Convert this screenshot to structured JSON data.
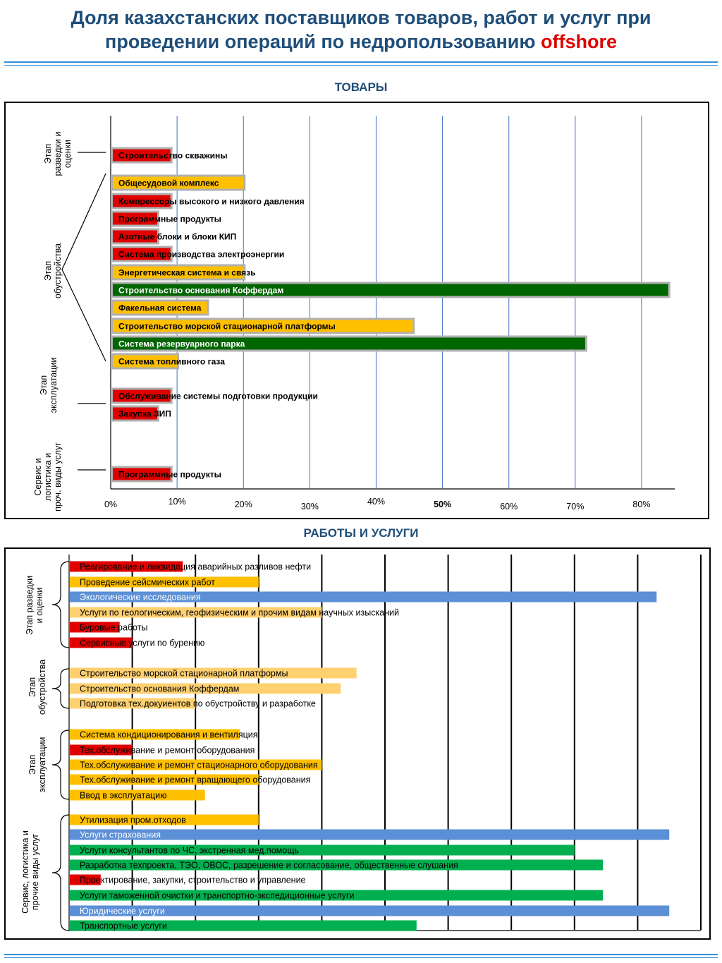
{
  "header": {
    "title_line1": "Доля казахстанских поставщиков товаров, работ и услуг при",
    "title_line2": "проведении операций по недропользованию",
    "title_accent": "offshore"
  },
  "colors": {
    "red": "#e00000",
    "orange": "#ffc000",
    "dark_green": "#006600",
    "blue": "#5b8fd6",
    "green": "#00b050",
    "light_orange": "#ffd070"
  },
  "chart_data": [
    {
      "type": "bar",
      "orientation": "horizontal",
      "title": "ТОВАРЫ",
      "x_ticks": [
        "0%",
        "10%",
        "20%",
        "30%",
        "40%",
        "50%",
        "60%",
        "70%",
        "80%"
      ],
      "xlim": [
        0,
        85
      ],
      "grid": "vertical",
      "groups": [
        {
          "label": "Этап разведки и оценки",
          "bars": [
            {
              "label": "Строительство скважины",
              "value": 9,
              "color": "red"
            }
          ]
        },
        {
          "label": "Этап обустройства",
          "bars": [
            {
              "label": "Общесудовой комплекс",
              "value": 20,
              "color": "orange"
            },
            {
              "label": "Компрессоры высокого и низкого давления",
              "value": 9,
              "color": "red"
            },
            {
              "label": "Программные продукты",
              "value": 7,
              "color": "red"
            },
            {
              "label": "Азотные блоки и блоки КИП",
              "value": 7,
              "color": "red"
            },
            {
              "label": "Система производства электроэнергии",
              "value": 9,
              "color": "red"
            },
            {
              "label": "Энергетическая система и связь",
              "value": 20,
              "color": "orange"
            },
            {
              "label": "Строительство основания Коффердам",
              "value": 84,
              "color": "dark_green"
            },
            {
              "label": "Факельная система",
              "value": 14.5,
              "color": "orange"
            },
            {
              "label": "Строительство морской стационарной платформы",
              "value": 45.5,
              "color": "orange"
            },
            {
              "label": "Система резервуарного парка",
              "value": 71.5,
              "color": "dark_green"
            },
            {
              "label": "Система топливного газа",
              "value": 10,
              "color": "orange"
            }
          ]
        },
        {
          "label": "Этап эксплуатации",
          "bars": [
            {
              "label": "Обслуживание системы подготовки продукции",
              "value": 9,
              "color": "red"
            },
            {
              "label": "Закупка ЗИП",
              "value": 7,
              "color": "red"
            }
          ]
        },
        {
          "label": "Сервис и логистика и проч. виды услуг",
          "bars": [
            {
              "label": "Программные продукты",
              "value": 9,
              "color": "red"
            }
          ]
        }
      ]
    },
    {
      "type": "bar",
      "orientation": "horizontal",
      "title": "РАБОТЫ И УСЛУГИ",
      "x_ticks": [
        "0%",
        "10%",
        "20%",
        "30%",
        "40%",
        "50%",
        "60%",
        "70%",
        "80%",
        "90%",
        "100%"
      ],
      "xlim": [
        0,
        100
      ],
      "grid": "vertical",
      "groups": [
        {
          "label": "Этап разведки и оценки",
          "bars": [
            {
              "label": "Реагирование и ликвидация аварийных разливов нефти",
              "value": 18,
              "color": "red"
            },
            {
              "label": "Проведение сейсмических работ",
              "value": 30,
              "color": "orange"
            },
            {
              "label": "Экологические исследования",
              "value": 93,
              "color": "blue"
            },
            {
              "label": "Услуги по геологическим, геофизическим и прочим видам научных изысканий",
              "value": 40,
              "color": "light_orange"
            },
            {
              "label": "Буровые работы",
              "value": 8,
              "color": "red"
            },
            {
              "label": "Сервисные услуги по бурению",
              "value": 10,
              "color": "red"
            }
          ]
        },
        {
          "label": "Этап обустройства",
          "bars": [
            {
              "label": "Строительство морской стационарной платформы",
              "value": 45.5,
              "color": "light_orange"
            },
            {
              "label": "Строительство основания Коффердам",
              "value": 43,
              "color": "light_orange"
            },
            {
              "label": "Подготовка тех.докуиентов по обустройству и разработке",
              "value": 20,
              "color": "light_orange"
            }
          ]
        },
        {
          "label": "Этап эксплуатации",
          "bars": [
            {
              "label": "Система кондиционирования и вентиляция",
              "value": 27,
              "color": "orange"
            },
            {
              "label": "Тех.обслуживание и ремонт оборудования",
              "value": 10,
              "color": "red"
            },
            {
              "label": "Тех.обслуживание и ремонт стационарного  оборудования",
              "value": 40,
              "color": "orange"
            },
            {
              "label": "Тех.обслуживание и ремонт вращающего оборудования",
              "value": 30,
              "color": "orange"
            },
            {
              "label": "Ввод в эксплуатацию",
              "value": 21.5,
              "color": "orange"
            }
          ]
        },
        {
          "label": "Сервис, логистика и прочие виды услуг",
          "bars": [
            {
              "label": "Утилизация пром.отходов",
              "value": 30,
              "color": "orange"
            },
            {
              "label": "Услуги страхования",
              "value": 95,
              "color": "blue"
            },
            {
              "label": "Услуги консультантов по ЧС, экстренная мед.помощь",
              "value": 80,
              "color": "green"
            },
            {
              "label": "Разработка техпроекта, ТЭО, ОВОС, разрешение и согласование, общественные слушания",
              "value": 84.5,
              "color": "green"
            },
            {
              "label": "Проектирование, закупки, строительство и управление",
              "value": 5,
              "color": "red"
            },
            {
              "label": "Услуги таможенной очистки и транспортно-экспедиционные услуги",
              "value": 84.5,
              "color": "green"
            },
            {
              "label": "Юридические услуги",
              "value": 95,
              "color": "blue"
            },
            {
              "label": "Транспортные услуги",
              "value": 55,
              "color": "green"
            }
          ]
        }
      ]
    }
  ]
}
